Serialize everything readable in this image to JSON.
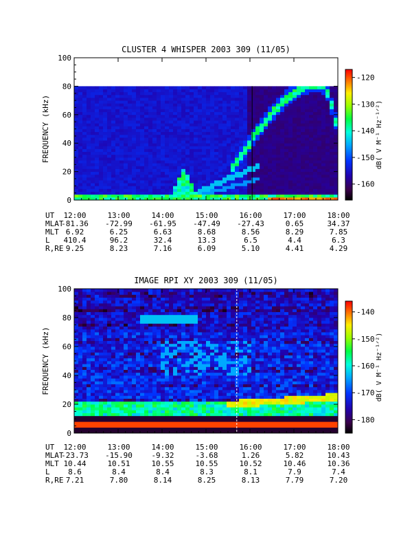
{
  "chart_data": [
    {
      "type": "heatmap",
      "title": "CLUSTER 4 WHISPER 2003 309 (11/05)",
      "ylabel": "FREQUENCY (kHz)",
      "ylim": [
        0,
        100
      ],
      "yticks": [
        "0",
        "20",
        "40",
        "60",
        "80",
        "100"
      ],
      "data_ylim": [
        0,
        80
      ],
      "x_range_hours": [
        12,
        18
      ],
      "xticks": [
        "12:00",
        "13:00",
        "14:00",
        "15:00",
        "16:00",
        "17:00",
        "18:00"
      ],
      "colorbar": {
        "label": "dB( V M⁻¹ Hz⁻¹ᐟ²)",
        "ticks": [
          "-120",
          "-130",
          "-140",
          "-150",
          "-160"
        ],
        "range": [
          -166,
          -117
        ]
      },
      "marker_line_hour": 16.05,
      "features": {
        "low_band_top_khz": 4,
        "hiss_burst_center_hour": 14.5,
        "arc_peak_hour": 17.6,
        "arc_peak_khz": 82,
        "arc_start_hour": 15.6,
        "arc_start_khz": 22,
        "arc_end_hour": 18,
        "arc_end_khz": 50
      },
      "ephemeris_rows": [
        {
          "label": "UT",
          "values": [
            "12:00",
            "13:00",
            "14:00",
            "15:00",
            "16:00",
            "17:00",
            "18:00"
          ]
        },
        {
          "label": "MLAT",
          "values": [
            "-81.36",
            "-72.99",
            "-61.95",
            "-47.49",
            "-27.43",
            "0.65",
            "34.37"
          ]
        },
        {
          "label": "MLT",
          "values": [
            "6.92",
            "6.25",
            "6.63",
            "8.68",
            "8.56",
            "8.29",
            "7.85"
          ]
        },
        {
          "label": "L",
          "values": [
            "410.4",
            "96.2",
            "32.4",
            "13.3",
            "6.5",
            "4.4",
            "6.3"
          ]
        },
        {
          "label": "R,RE",
          "values": [
            "9.25",
            "8.23",
            "7.16",
            "6.09",
            "5.10",
            "4.41",
            "4.29"
          ]
        }
      ]
    },
    {
      "type": "heatmap",
      "title": "IMAGE RPI XY 2003 309 (11/05)",
      "ylabel": "FREQUENCY (kHz)",
      "ylim": [
        0,
        100
      ],
      "yticks": [
        "0",
        "20",
        "40",
        "60",
        "80",
        "100"
      ],
      "data_ylim": [
        0,
        100
      ],
      "x_range_hours": [
        12,
        18
      ],
      "xticks": [
        "12:00",
        "13:00",
        "14:00",
        "15:00",
        "16:00",
        "17:00",
        "18:00"
      ],
      "colorbar": {
        "label": "dB( V M⁻¹ Hz⁻¹ᐟ²)",
        "ticks": [
          "-140",
          "-150",
          "-160",
          "-170",
          "-180"
        ],
        "range": [
          -185,
          -136
        ]
      },
      "marker_line_hour": 15.7,
      "features": {
        "emission_band_khz": 20,
        "emission_start_hour": 15.5,
        "noise_floor_top_khz": 13
      },
      "ephemeris_rows": [
        {
          "label": "UT",
          "values": [
            "12:00",
            "13:00",
            "14:00",
            "15:00",
            "16:00",
            "17:00",
            "18:00"
          ]
        },
        {
          "label": "MLAT",
          "values": [
            "-23.73",
            "-15.90",
            "-9.32",
            "-3.68",
            "1.26",
            "5.82",
            "10.43"
          ]
        },
        {
          "label": "MLT",
          "values": [
            "10.44",
            "10.51",
            "10.55",
            "10.55",
            "10.52",
            "10.46",
            "10.36"
          ]
        },
        {
          "label": "L",
          "values": [
            "8.6",
            "8.4",
            "8.4",
            "8.3",
            "8.1",
            "7.9",
            "7.4"
          ]
        },
        {
          "label": "R,RE",
          "values": [
            "7.21",
            "7.80",
            "8.14",
            "8.25",
            "8.13",
            "7.79",
            "7.20"
          ]
        }
      ]
    }
  ]
}
